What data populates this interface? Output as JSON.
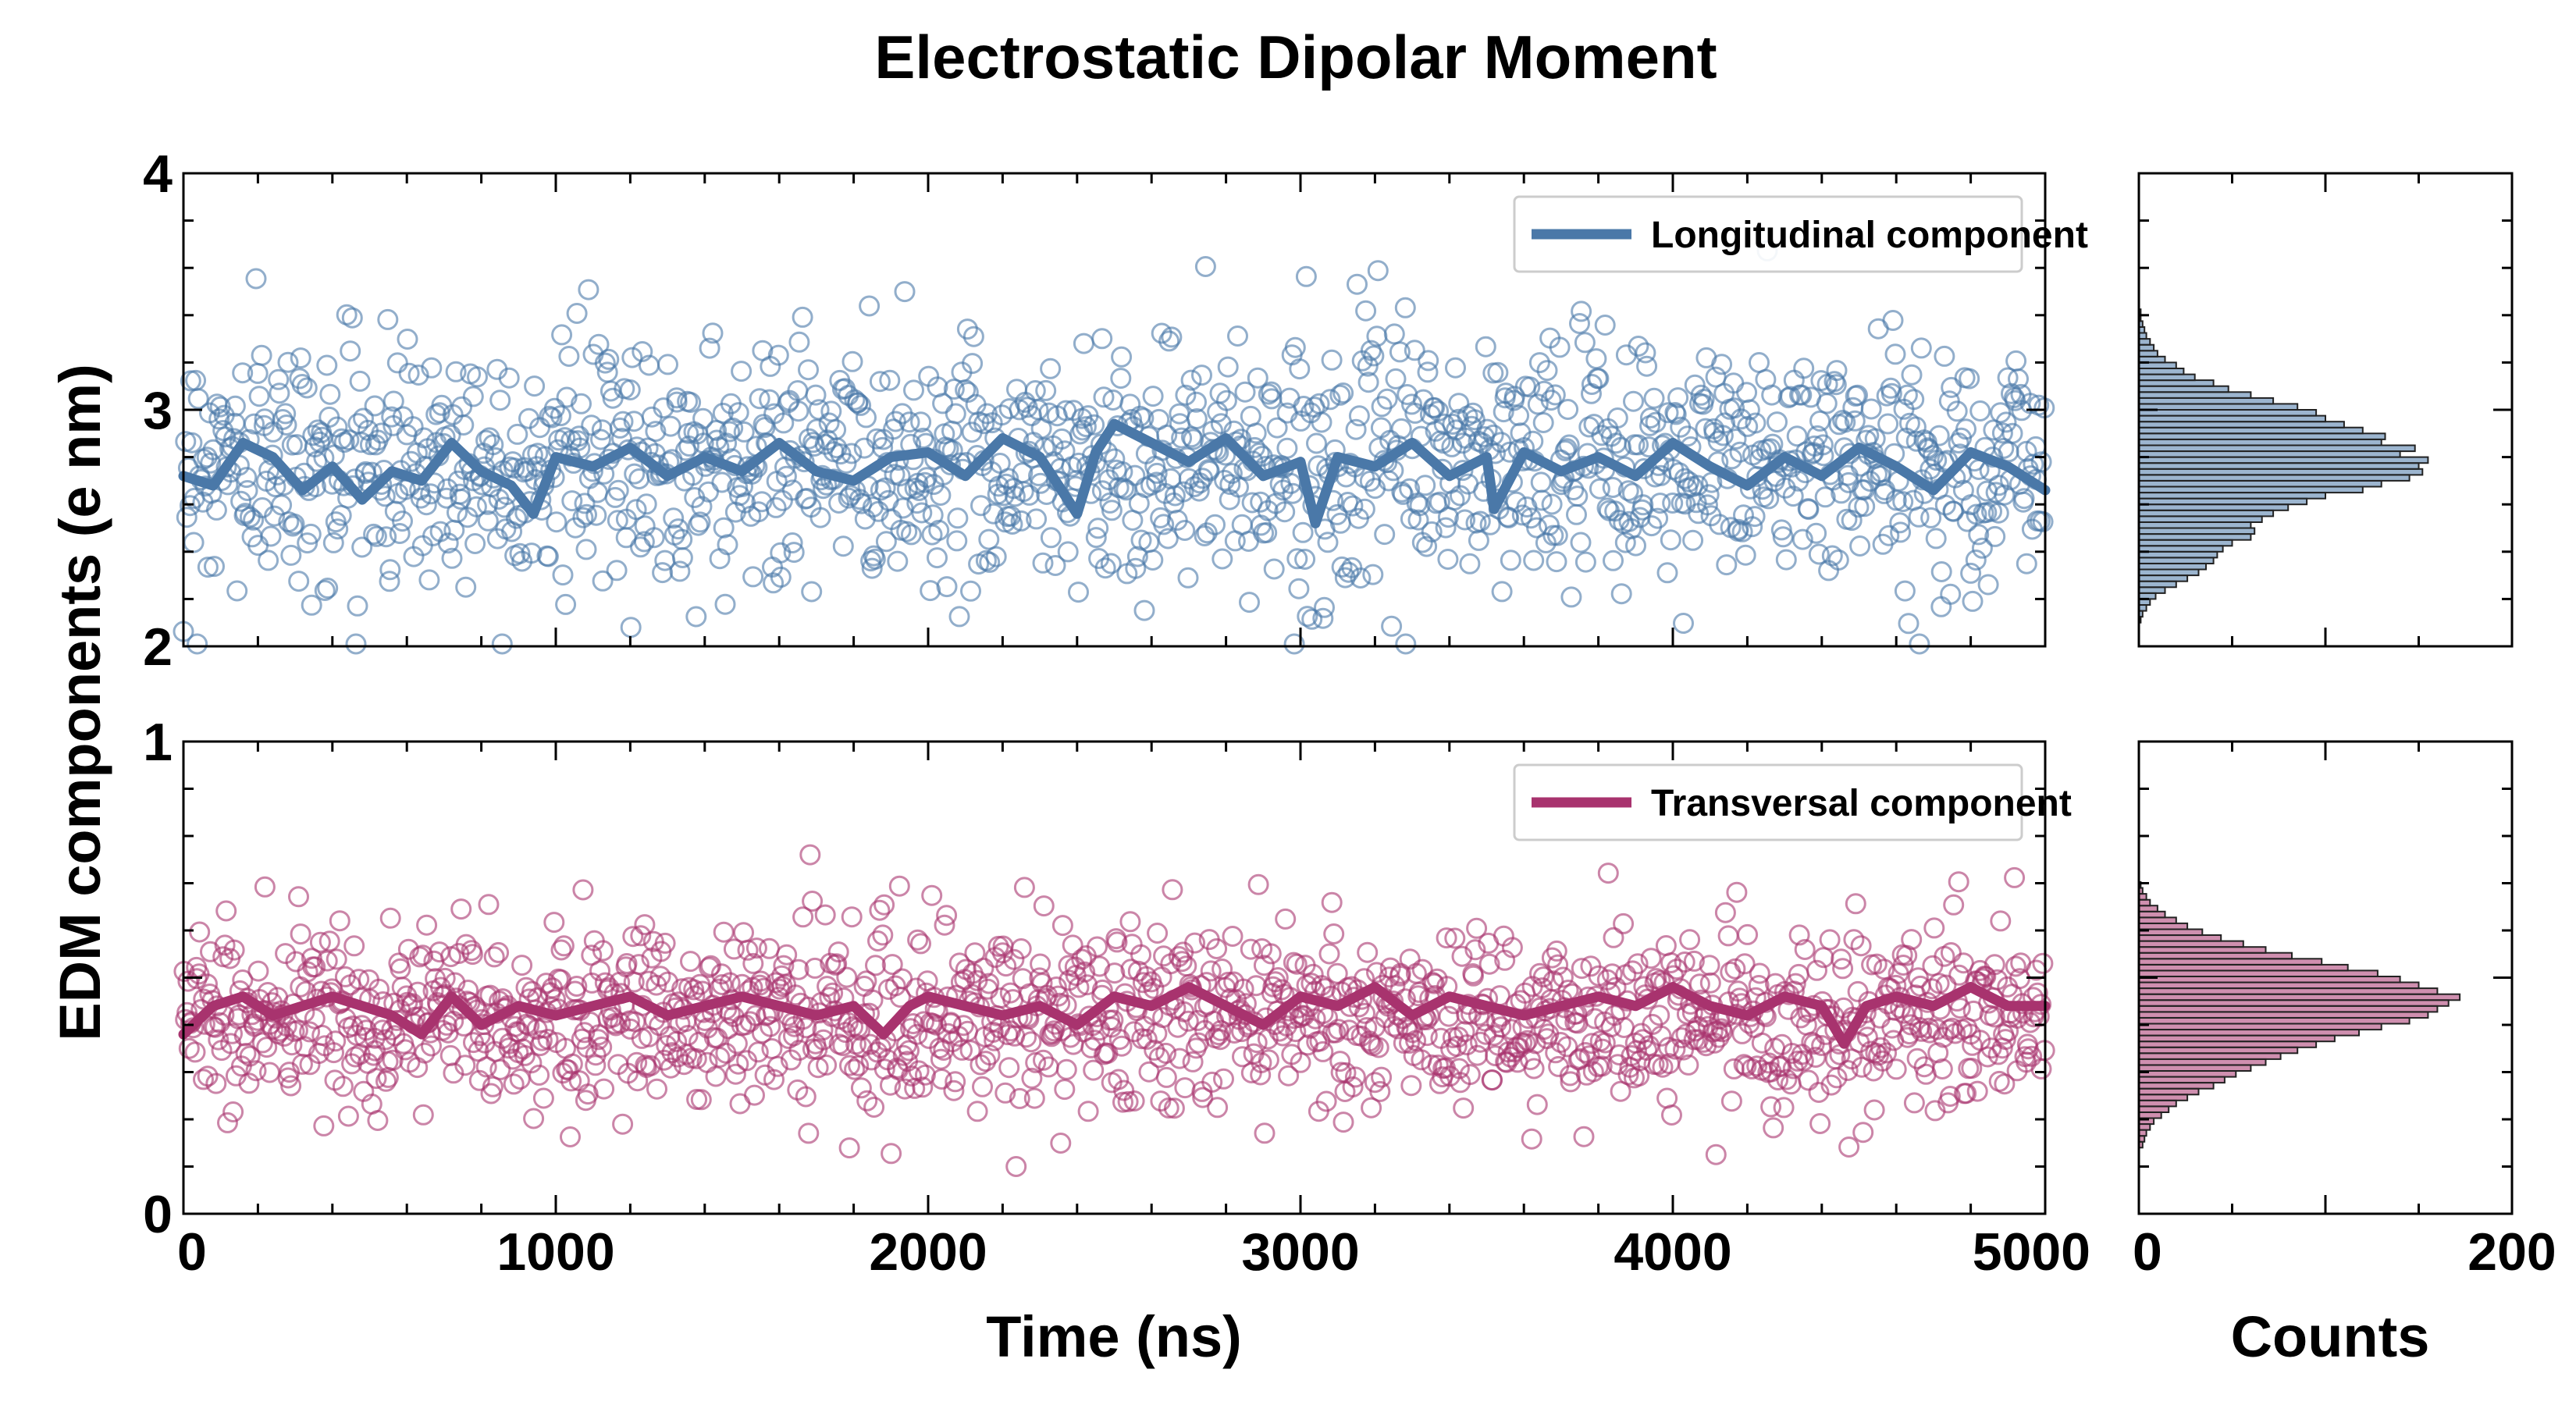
{
  "title": "Electrostatic Dipolar Moment",
  "ylabel": "EDM components (e nm)",
  "xlabel_main": "Time (ns)",
  "xlabel_hist": "Counts",
  "colors": {
    "longitudinal": "#4a78a8",
    "transversal": "#a8336e"
  },
  "chart_data": [
    {
      "type": "scatter",
      "panel": "top-time-series",
      "xlim": [
        0,
        5000
      ],
      "ylim": [
        2,
        4
      ],
      "xticks": [
        "0",
        "1000",
        "2000",
        "3000",
        "4000",
        "5000"
      ],
      "yticks": [
        "2",
        "3",
        "4"
      ],
      "legend": "Longitudinal component",
      "legend_position": "top-right",
      "scatter_mean": 2.78,
      "scatter_spread": 0.26,
      "running_mean": [
        [
          0,
          2.72
        ],
        [
          80,
          2.68
        ],
        [
          160,
          2.86
        ],
        [
          240,
          2.8
        ],
        [
          320,
          2.66
        ],
        [
          400,
          2.76
        ],
        [
          480,
          2.62
        ],
        [
          560,
          2.74
        ],
        [
          640,
          2.7
        ],
        [
          720,
          2.86
        ],
        [
          800,
          2.74
        ],
        [
          880,
          2.68
        ],
        [
          940,
          2.56
        ],
        [
          1000,
          2.8
        ],
        [
          1100,
          2.76
        ],
        [
          1200,
          2.84
        ],
        [
          1300,
          2.72
        ],
        [
          1400,
          2.8
        ],
        [
          1500,
          2.74
        ],
        [
          1600,
          2.86
        ],
        [
          1700,
          2.74
        ],
        [
          1800,
          2.7
        ],
        [
          1900,
          2.8
        ],
        [
          2000,
          2.82
        ],
        [
          2100,
          2.72
        ],
        [
          2200,
          2.88
        ],
        [
          2300,
          2.8
        ],
        [
          2400,
          2.56
        ],
        [
          2450,
          2.82
        ],
        [
          2500,
          2.94
        ],
        [
          2600,
          2.86
        ],
        [
          2700,
          2.78
        ],
        [
          2800,
          2.88
        ],
        [
          2900,
          2.72
        ],
        [
          3000,
          2.78
        ],
        [
          3040,
          2.52
        ],
        [
          3100,
          2.8
        ],
        [
          3200,
          2.76
        ],
        [
          3300,
          2.86
        ],
        [
          3400,
          2.72
        ],
        [
          3500,
          2.8
        ],
        [
          3520,
          2.58
        ],
        [
          3600,
          2.82
        ],
        [
          3700,
          2.74
        ],
        [
          3800,
          2.8
        ],
        [
          3900,
          2.72
        ],
        [
          4000,
          2.86
        ],
        [
          4100,
          2.76
        ],
        [
          4200,
          2.68
        ],
        [
          4300,
          2.8
        ],
        [
          4400,
          2.72
        ],
        [
          4500,
          2.84
        ],
        [
          4600,
          2.76
        ],
        [
          4700,
          2.66
        ],
        [
          4800,
          2.82
        ],
        [
          4900,
          2.76
        ],
        [
          5000,
          2.66
        ]
      ]
    },
    {
      "type": "scatter",
      "panel": "bottom-time-series",
      "xlim": [
        0,
        5000
      ],
      "ylim": [
        0,
        1
      ],
      "xticks": [
        "0",
        "1000",
        "2000",
        "3000",
        "4000",
        "5000"
      ],
      "yticks": [
        "0",
        "1"
      ],
      "legend": "Transversal component",
      "legend_position": "top-right",
      "scatter_mean": 0.42,
      "scatter_spread": 0.1,
      "running_mean": [
        [
          0,
          0.38
        ],
        [
          80,
          0.44
        ],
        [
          160,
          0.46
        ],
        [
          240,
          0.42
        ],
        [
          320,
          0.44
        ],
        [
          400,
          0.46
        ],
        [
          480,
          0.44
        ],
        [
          560,
          0.42
        ],
        [
          640,
          0.38
        ],
        [
          720,
          0.46
        ],
        [
          800,
          0.4
        ],
        [
          900,
          0.44
        ],
        [
          1000,
          0.42
        ],
        [
          1100,
          0.44
        ],
        [
          1200,
          0.46
        ],
        [
          1300,
          0.42
        ],
        [
          1400,
          0.44
        ],
        [
          1500,
          0.46
        ],
        [
          1600,
          0.44
        ],
        [
          1700,
          0.42
        ],
        [
          1800,
          0.44
        ],
        [
          1880,
          0.38
        ],
        [
          1950,
          0.44
        ],
        [
          2000,
          0.46
        ],
        [
          2100,
          0.44
        ],
        [
          2200,
          0.42
        ],
        [
          2300,
          0.44
        ],
        [
          2400,
          0.4
        ],
        [
          2500,
          0.46
        ],
        [
          2600,
          0.44
        ],
        [
          2700,
          0.48
        ],
        [
          2800,
          0.44
        ],
        [
          2900,
          0.4
        ],
        [
          3000,
          0.46
        ],
        [
          3100,
          0.44
        ],
        [
          3200,
          0.48
        ],
        [
          3300,
          0.42
        ],
        [
          3400,
          0.46
        ],
        [
          3500,
          0.44
        ],
        [
          3600,
          0.42
        ],
        [
          3700,
          0.44
        ],
        [
          3800,
          0.46
        ],
        [
          3900,
          0.44
        ],
        [
          4000,
          0.48
        ],
        [
          4100,
          0.44
        ],
        [
          4200,
          0.42
        ],
        [
          4300,
          0.46
        ],
        [
          4400,
          0.44
        ],
        [
          4460,
          0.36
        ],
        [
          4520,
          0.44
        ],
        [
          4600,
          0.46
        ],
        [
          4700,
          0.44
        ],
        [
          4800,
          0.48
        ],
        [
          4900,
          0.44
        ],
        [
          5000,
          0.44
        ]
      ]
    },
    {
      "type": "bar",
      "panel": "top-histogram",
      "orientation": "horizontal",
      "xlim": [
        0,
        200
      ],
      "ylim": [
        2,
        4
      ],
      "xticks": [
        "0",
        "200"
      ],
      "bin_width": 0.025,
      "bins": [
        [
          2.1,
          1
        ],
        [
          2.125,
          2
        ],
        [
          2.15,
          4
        ],
        [
          2.175,
          6
        ],
        [
          2.2,
          9
        ],
        [
          2.225,
          14
        ],
        [
          2.25,
          20
        ],
        [
          2.275,
          26
        ],
        [
          2.3,
          32
        ],
        [
          2.325,
          36
        ],
        [
          2.35,
          40
        ],
        [
          2.375,
          42
        ],
        [
          2.4,
          45
        ],
        [
          2.425,
          50
        ],
        [
          2.45,
          60
        ],
        [
          2.475,
          62
        ],
        [
          2.5,
          60
        ],
        [
          2.525,
          66
        ],
        [
          2.55,
          72
        ],
        [
          2.575,
          80
        ],
        [
          2.6,
          90
        ],
        [
          2.625,
          100
        ],
        [
          2.65,
          120
        ],
        [
          2.675,
          130
        ],
        [
          2.7,
          145
        ],
        [
          2.725,
          152
        ],
        [
          2.75,
          150
        ],
        [
          2.775,
          155
        ],
        [
          2.8,
          140
        ],
        [
          2.825,
          148
        ],
        [
          2.85,
          130
        ],
        [
          2.875,
          132
        ],
        [
          2.9,
          120
        ],
        [
          2.925,
          110
        ],
        [
          2.95,
          100
        ],
        [
          2.975,
          95
        ],
        [
          3.0,
          85
        ],
        [
          3.025,
          72
        ],
        [
          3.05,
          60
        ],
        [
          3.075,
          48
        ],
        [
          3.1,
          40
        ],
        [
          3.125,
          30
        ],
        [
          3.15,
          24
        ],
        [
          3.175,
          20
        ],
        [
          3.2,
          14
        ],
        [
          3.225,
          10
        ],
        [
          3.25,
          8
        ],
        [
          3.275,
          6
        ],
        [
          3.3,
          4
        ],
        [
          3.325,
          3
        ],
        [
          3.35,
          2
        ],
        [
          3.375,
          1
        ],
        [
          3.4,
          1
        ]
      ]
    },
    {
      "type": "bar",
      "panel": "bottom-histogram",
      "orientation": "horizontal",
      "xlim": [
        0,
        200
      ],
      "ylim": [
        0,
        1
      ],
      "xticks": [
        "0",
        "200"
      ],
      "bin_width": 0.0125,
      "bins": [
        [
          0.14,
          2
        ],
        [
          0.1525,
          3
        ],
        [
          0.165,
          4
        ],
        [
          0.1775,
          6
        ],
        [
          0.19,
          8
        ],
        [
          0.2025,
          12
        ],
        [
          0.215,
          16
        ],
        [
          0.2275,
          20
        ],
        [
          0.24,
          26
        ],
        [
          0.2525,
          32
        ],
        [
          0.265,
          40
        ],
        [
          0.2775,
          46
        ],
        [
          0.29,
          52
        ],
        [
          0.3025,
          60
        ],
        [
          0.315,
          68
        ],
        [
          0.3275,
          76
        ],
        [
          0.34,
          85
        ],
        [
          0.3525,
          95
        ],
        [
          0.365,
          105
        ],
        [
          0.3775,
          118
        ],
        [
          0.39,
          130
        ],
        [
          0.4025,
          145
        ],
        [
          0.415,
          155
        ],
        [
          0.4275,
          160
        ],
        [
          0.44,
          166
        ],
        [
          0.4525,
          172
        ],
        [
          0.465,
          160
        ],
        [
          0.4775,
          150
        ],
        [
          0.49,
          140
        ],
        [
          0.5025,
          128
        ],
        [
          0.515,
          112
        ],
        [
          0.5275,
          98
        ],
        [
          0.54,
          82
        ],
        [
          0.5525,
          68
        ],
        [
          0.565,
          56
        ],
        [
          0.5775,
          44
        ],
        [
          0.59,
          34
        ],
        [
          0.6025,
          26
        ],
        [
          0.615,
          20
        ],
        [
          0.6275,
          14
        ],
        [
          0.64,
          10
        ],
        [
          0.6525,
          6
        ],
        [
          0.665,
          4
        ],
        [
          0.6775,
          2
        ],
        [
          0.69,
          1
        ]
      ]
    }
  ]
}
